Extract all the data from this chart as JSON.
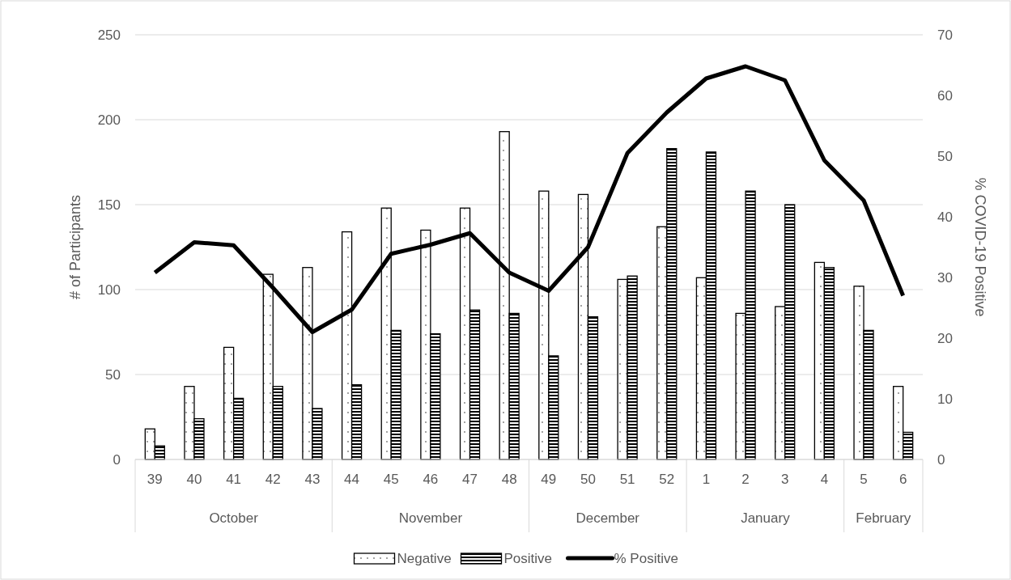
{
  "chart_data": {
    "type": "bar",
    "xlabel": null,
    "ylabel": "# of Participants",
    "y2label": "% COVID-19 Positive",
    "categories": [
      "39",
      "40",
      "41",
      "42",
      "43",
      "44",
      "45",
      "46",
      "47",
      "48",
      "49",
      "50",
      "51",
      "52",
      "1",
      "2",
      "3",
      "4",
      "5",
      "6"
    ],
    "series": [
      {
        "name": "Negative",
        "color": "#000000",
        "values": [
          18,
          43,
          66,
          109,
          113,
          134,
          148,
          135,
          148,
          193,
          158,
          156,
          106,
          137,
          107,
          86,
          90,
          116,
          102,
          43
        ]
      },
      {
        "name": "Positive",
        "color": "#000000",
        "values": [
          8,
          24,
          36,
          43,
          30,
          44,
          76,
          74,
          88,
          86,
          61,
          84,
          108,
          183,
          181,
          158,
          150,
          113,
          76,
          16
        ]
      },
      {
        "name": "% Positive",
        "type": "line",
        "axis": "y2",
        "color": "#000000",
        "values": [
          30.8,
          35.8,
          35.3,
          28.3,
          21,
          24.7,
          33.9,
          35.4,
          37.3,
          30.8,
          27.8,
          35,
          50.5,
          57.2,
          62.8,
          64.8,
          62.5,
          49.3,
          42.7,
          27
        ]
      }
    ],
    "ylim": [
      0,
      250
    ],
    "yticks": [
      0,
      50,
      100,
      150,
      200,
      250
    ],
    "y2lim": [
      0,
      70
    ],
    "y2ticks": [
      0,
      10,
      20,
      30,
      40,
      50,
      60,
      70
    ],
    "annotations": [
      "October",
      "November",
      "December",
      "January",
      "February"
    ],
    "grid": "y",
    "legend": "bottom",
    "marker": "none",
    "line_style": "solid"
  }
}
